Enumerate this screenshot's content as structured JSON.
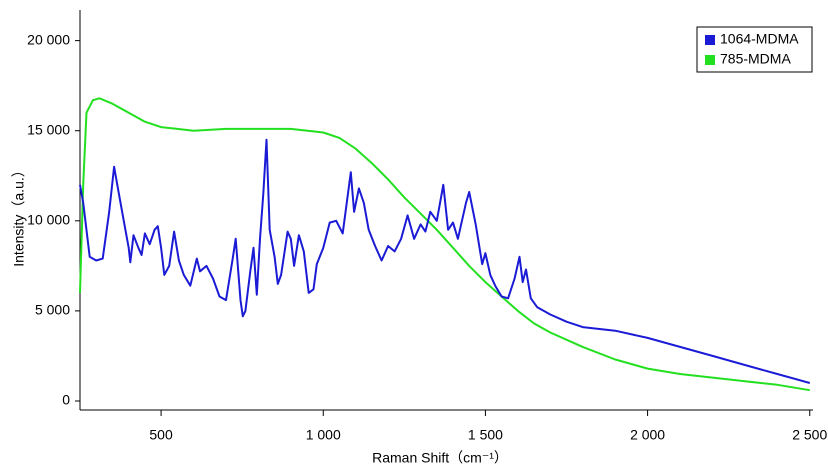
{
  "chart_data": {
    "type": "line",
    "x_label": "Raman Shift（cm⁻¹）",
    "y_label": "Intensity（a.u.）",
    "xlim": [
      250,
      2510
    ],
    "ylim": [
      -500,
      21700
    ],
    "xticks": [
      500,
      {
        "value": 1000,
        "label": "1 000"
      },
      {
        "value": 1500,
        "label": "1 500"
      },
      {
        "value": 2000,
        "label": "2 000"
      },
      {
        "value": 2500,
        "label": "2 500"
      }
    ],
    "yticks": [
      0,
      {
        "value": 5000,
        "label": "5 000"
      },
      {
        "value": 10000,
        "label": "10 000"
      },
      {
        "value": 15000,
        "label": "15 000"
      },
      {
        "value": 20000,
        "label": "20 000"
      }
    ],
    "legend": "top-right",
    "series": [
      {
        "name": "1064-MDMA",
        "color": "#1b1bd6",
        "x": [
          250,
          260,
          280,
          300,
          320,
          340,
          355,
          370,
          390,
          400,
          405,
          415,
          430,
          440,
          450,
          465,
          480,
          490,
          500,
          510,
          525,
          540,
          555,
          570,
          590,
          610,
          620,
          640,
          660,
          680,
          700,
          720,
          730,
          745,
          752,
          760,
          775,
          785,
          795,
          805,
          815,
          825,
          835,
          850,
          860,
          870,
          890,
          900,
          910,
          925,
          940,
          955,
          970,
          980,
          1000,
          1020,
          1040,
          1060,
          1085,
          1095,
          1110,
          1125,
          1140,
          1160,
          1180,
          1200,
          1220,
          1240,
          1260,
          1280,
          1300,
          1315,
          1330,
          1350,
          1370,
          1385,
          1400,
          1415,
          1440,
          1450,
          1470,
          1490,
          1500,
          1515,
          1530,
          1550,
          1570,
          1590,
          1605,
          1615,
          1625,
          1640,
          1660,
          1700,
          1750,
          1800,
          1900,
          2000,
          2100,
          2200,
          2300,
          2400,
          2500
        ],
        "values": [
          12000,
          11000,
          8000,
          7800,
          7900,
          10500,
          13000,
          11500,
          9500,
          8500,
          7700,
          9200,
          8500,
          8100,
          9300,
          8700,
          9500,
          9700,
          8500,
          7000,
          7500,
          9400,
          7800,
          7000,
          6400,
          7900,
          7200,
          7500,
          6800,
          5800,
          5600,
          7800,
          9000,
          5600,
          4700,
          5000,
          7200,
          8500,
          5900,
          9000,
          11500,
          14500,
          9500,
          8000,
          6500,
          7000,
          9400,
          9000,
          7500,
          9200,
          8300,
          6000,
          6200,
          7600,
          8500,
          9900,
          10000,
          9300,
          12700,
          10500,
          11800,
          11000,
          9500,
          8600,
          7800,
          8600,
          8300,
          9000,
          10300,
          9000,
          9800,
          9400,
          10500,
          10000,
          12000,
          9500,
          9900,
          9000,
          11000,
          11600,
          9800,
          7600,
          8200,
          7000,
          6400,
          5800,
          5700,
          6800,
          8000,
          6600,
          7300,
          5700,
          5200,
          4800,
          4400,
          4100,
          3900,
          3500,
          3000,
          2500,
          2000,
          1500,
          1000
        ]
      },
      {
        "name": "785-MDMA",
        "color": "#22e01f",
        "x": [
          250,
          260,
          270,
          290,
          310,
          350,
          400,
          450,
          500,
          550,
          600,
          700,
          800,
          900,
          1000,
          1050,
          1100,
          1150,
          1200,
          1250,
          1300,
          1350,
          1400,
          1450,
          1500,
          1550,
          1600,
          1650,
          1700,
          1800,
          1900,
          2000,
          2100,
          2200,
          2300,
          2400,
          2500
        ],
        "values": [
          6000,
          12000,
          16000,
          16700,
          16800,
          16500,
          16000,
          15500,
          15200,
          15100,
          15000,
          15100,
          15100,
          15100,
          14900,
          14600,
          14000,
          13200,
          12300,
          11300,
          10400,
          9500,
          8500,
          7500,
          6600,
          5800,
          5000,
          4300,
          3800,
          3000,
          2300,
          1800,
          1500,
          1300,
          1100,
          900,
          600
        ]
      }
    ]
  }
}
